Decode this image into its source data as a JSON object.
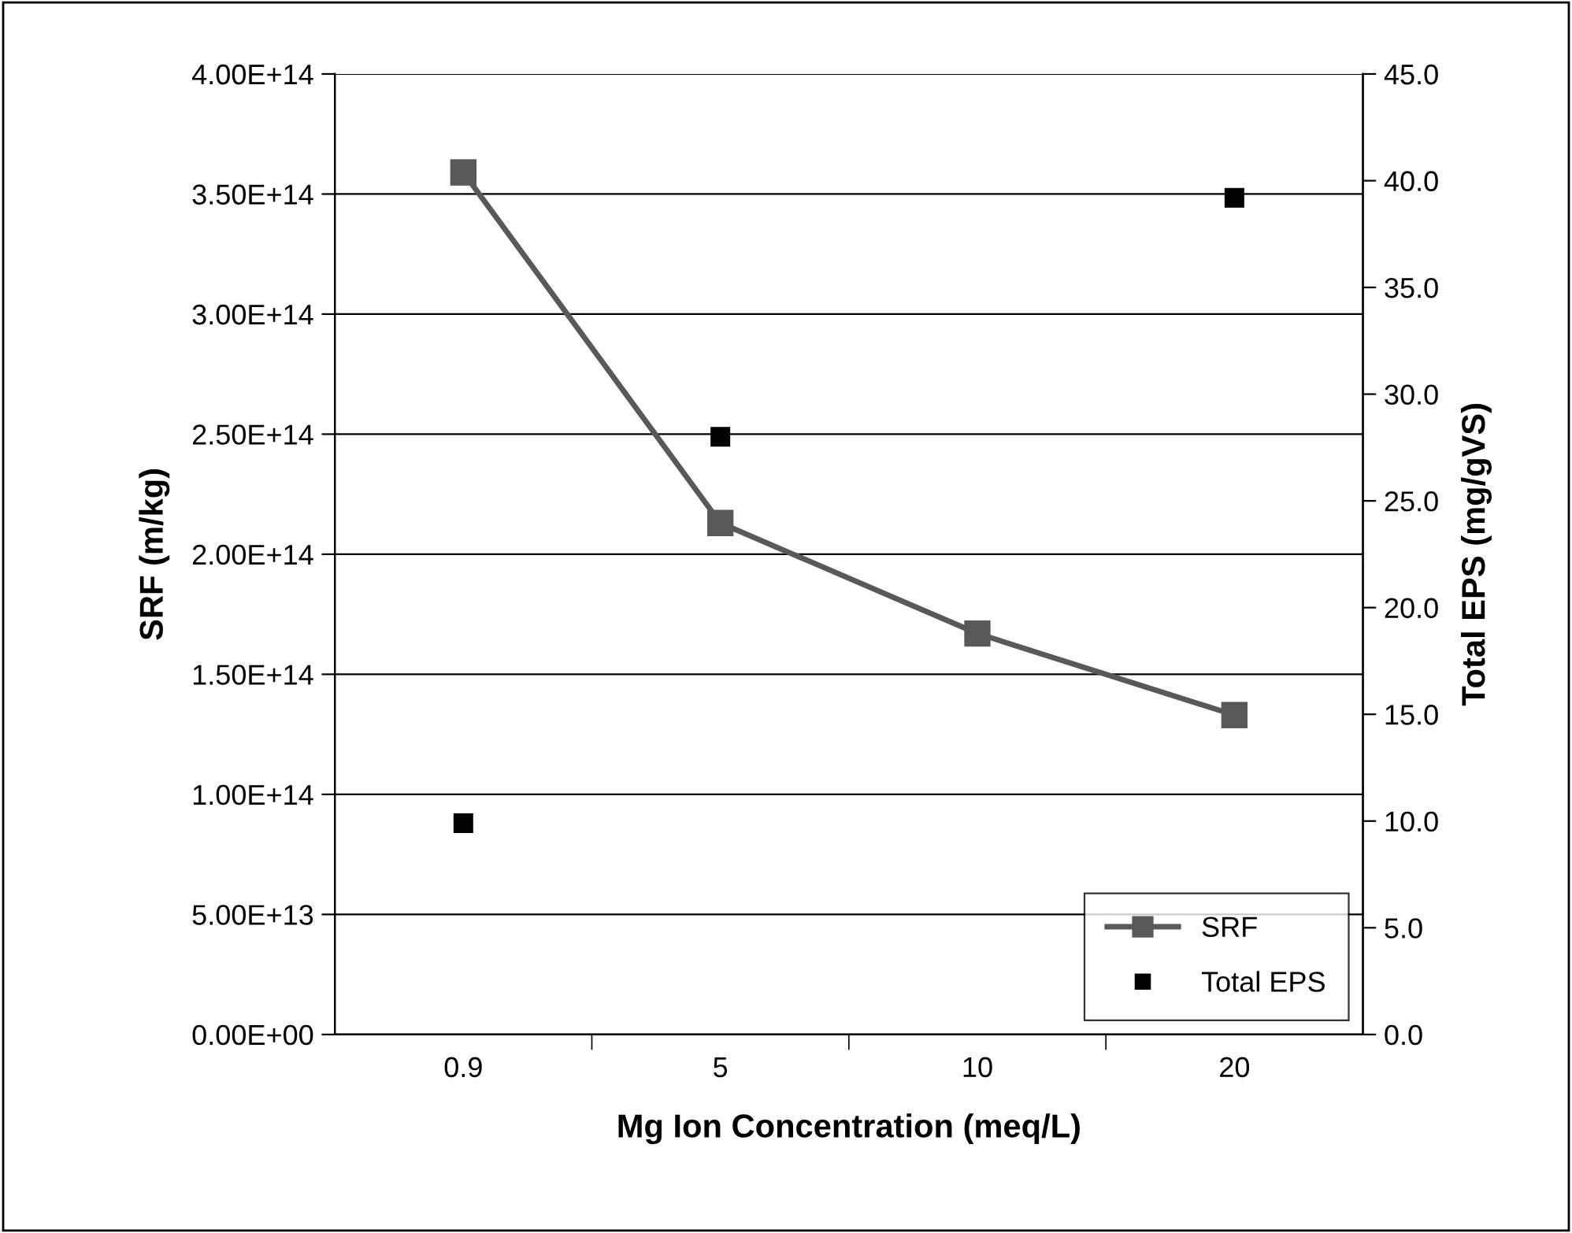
{
  "chart_data": {
    "type": "line",
    "xlabel": "Mg Ion Concentration (meq/L)",
    "ylabel": "SRF (m/kg)",
    "y2label": "Total EPS (mg/gVS)",
    "categories": [
      "0.9",
      "5",
      "10",
      "20"
    ],
    "series": [
      {
        "name": "SRF",
        "color": "#595959",
        "marker": "square",
        "line_style": "solid",
        "values": [
          359000000000000.0,
          213000000000000.0,
          167000000000000.0,
          133000000000000.0
        ]
      },
      {
        "name": "Total EPS",
        "type": "scatter",
        "color": "#000000",
        "marker": "square",
        "axis": "y2",
        "values": [
          9.9,
          28.0,
          null,
          39.2
        ]
      }
    ],
    "ylim": [
      0,
      400000000000000.0
    ],
    "yticks": [
      {
        "value": 0,
        "label": "0.00E+00"
      },
      {
        "value": 50000000000000.0,
        "label": "5.00E+13"
      },
      {
        "value": 100000000000000.0,
        "label": "1.00E+14"
      },
      {
        "value": 150000000000000.0,
        "label": "1.50E+14"
      },
      {
        "value": 200000000000000.0,
        "label": "2.00E+14"
      },
      {
        "value": 250000000000000.0,
        "label": "2.50E+14"
      },
      {
        "value": 300000000000000.0,
        "label": "3.00E+14"
      },
      {
        "value": 350000000000000.0,
        "label": "3.50E+14"
      },
      {
        "value": 400000000000000.0,
        "label": "4.00E+14"
      }
    ],
    "y2lim": [
      0,
      45
    ],
    "y2ticks": [
      {
        "value": 0,
        "label": "0.0"
      },
      {
        "value": 5,
        "label": "5.0"
      },
      {
        "value": 10,
        "label": "10.0"
      },
      {
        "value": 15,
        "label": "15.0"
      },
      {
        "value": 20,
        "label": "20.0"
      },
      {
        "value": 25,
        "label": "25.0"
      },
      {
        "value": 30,
        "label": "30.0"
      },
      {
        "value": 35,
        "label": "35.0"
      },
      {
        "value": 40,
        "label": "40.0"
      },
      {
        "value": 45,
        "label": "45.0"
      }
    ],
    "grid": "y",
    "legend": "bottom right"
  }
}
